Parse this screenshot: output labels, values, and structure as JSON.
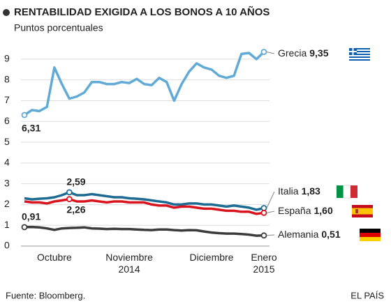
{
  "chart_data": {
    "type": "line",
    "title": "RENTABILIDAD EXIGIDA A LOS BONOS  A 10 AÑOS",
    "subtitle": "Puntos porcentuales",
    "source": "Fuente: Bloomberg.",
    "credit": "EL PAÍS",
    "categories": [
      null,
      null,
      null,
      null,
      "Octubre",
      null,
      null,
      null,
      null,
      null,
      null,
      null,
      null,
      null,
      "Noviembre 2014",
      null,
      null,
      null,
      null,
      null,
      null,
      null,
      null,
      null,
      null,
      "Diciembre",
      null,
      null,
      null,
      null,
      null,
      null,
      "Enero 2015"
    ],
    "ylim": [
      0,
      9.5
    ],
    "yticks": [
      0,
      1,
      2,
      3,
      4,
      5,
      6,
      7,
      8,
      9
    ],
    "grid": true,
    "series": [
      {
        "name": "Grecia",
        "color": "#62aad6",
        "values": [
          6.31,
          6.55,
          6.5,
          6.7,
          8.6,
          7.8,
          7.1,
          7.2,
          7.4,
          7.9,
          7.9,
          7.8,
          7.8,
          7.9,
          7.85,
          8.05,
          7.8,
          7.75,
          8.1,
          7.9,
          7.0,
          7.8,
          8.4,
          8.8,
          8.6,
          8.5,
          8.2,
          8.1,
          8.2,
          9.25,
          9.3,
          9.0,
          9.35
        ],
        "value_labels": [
          "6,31",
          null,
          null,
          null,
          null,
          null,
          null,
          null,
          null,
          null,
          null,
          null,
          null,
          null,
          null,
          null,
          null,
          null,
          null,
          null,
          null,
          null,
          null,
          null,
          null,
          null,
          null,
          null,
          null,
          null,
          null,
          null,
          "9,35"
        ]
      },
      {
        "name": "Italia",
        "color": "#1d6a93",
        "values": [
          2.3,
          2.25,
          2.28,
          2.3,
          2.35,
          2.45,
          2.59,
          2.45,
          2.45,
          2.5,
          2.45,
          2.4,
          2.35,
          2.35,
          2.3,
          2.28,
          2.25,
          2.2,
          2.15,
          2.1,
          2.0,
          2.0,
          2.05,
          2.05,
          2.0,
          2.0,
          1.95,
          1.9,
          1.95,
          1.9,
          1.85,
          1.75,
          1.83
        ],
        "value_labels": [
          null,
          null,
          null,
          null,
          null,
          null,
          "2,59",
          null,
          null,
          null,
          null,
          null,
          null,
          null,
          null,
          null,
          null,
          null,
          null,
          null,
          null,
          null,
          null,
          null,
          null,
          null,
          null,
          null,
          null,
          null,
          null,
          null,
          "1,83"
        ]
      },
      {
        "name": "España",
        "color": "#d9141e",
        "values": [
          2.15,
          2.1,
          2.1,
          2.05,
          2.15,
          2.2,
          2.26,
          2.15,
          2.15,
          2.2,
          2.15,
          2.1,
          2.15,
          2.15,
          2.1,
          2.1,
          2.1,
          2.0,
          1.95,
          1.95,
          1.85,
          1.9,
          1.9,
          1.85,
          1.8,
          1.8,
          1.75,
          1.7,
          1.7,
          1.65,
          1.65,
          1.55,
          1.6
        ],
        "value_labels": [
          null,
          null,
          null,
          null,
          null,
          null,
          "2,26",
          null,
          null,
          null,
          null,
          null,
          null,
          null,
          null,
          null,
          null,
          null,
          null,
          null,
          null,
          null,
          null,
          null,
          null,
          null,
          null,
          null,
          null,
          null,
          null,
          null,
          "1,60"
        ]
      },
      {
        "name": "Alemania",
        "color": "#3b3b3b",
        "values": [
          0.91,
          0.92,
          0.9,
          0.85,
          0.78,
          0.85,
          0.87,
          0.88,
          0.9,
          0.85,
          0.84,
          0.82,
          0.83,
          0.82,
          0.82,
          0.8,
          0.78,
          0.77,
          0.8,
          0.8,
          0.77,
          0.75,
          0.77,
          0.76,
          0.7,
          0.65,
          0.62,
          0.6,
          0.6,
          0.58,
          0.55,
          0.5,
          0.51
        ],
        "value_labels": [
          "0,91",
          null,
          null,
          null,
          null,
          null,
          null,
          null,
          null,
          null,
          null,
          null,
          null,
          null,
          null,
          null,
          null,
          null,
          null,
          null,
          null,
          null,
          null,
          null,
          null,
          null,
          null,
          null,
          null,
          null,
          null,
          null,
          "0,51"
        ]
      }
    ]
  }
}
